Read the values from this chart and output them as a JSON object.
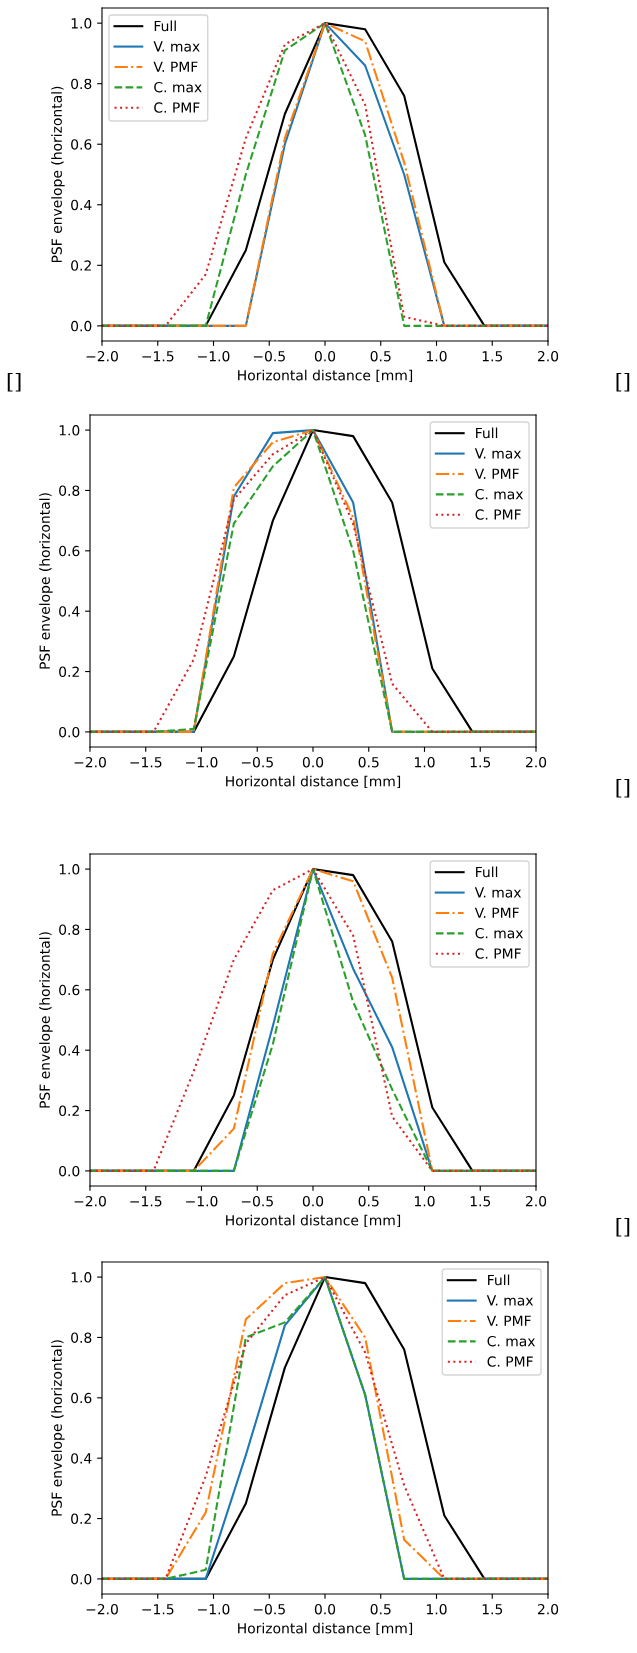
{
  "chart_data": [
    {
      "type": "line",
      "xlabel": "Horizontal distance [mm]",
      "ylabel": "PSF envelope (horizontal)",
      "legend": "top left",
      "annotations": [
        "[]",
        "[]"
      ],
      "x": [
        -2,
        -1.43,
        -1.07,
        -0.71,
        -0.36,
        0,
        0.36,
        0.71,
        1.07,
        1.43,
        2
      ],
      "xlim": [
        -2,
        2
      ],
      "ylim": [
        -0.05,
        1.05
      ],
      "xticks": [
        {
          "value": -2,
          "label": "−2.0"
        },
        {
          "value": -1.5,
          "label": "−1.5"
        },
        {
          "value": -1,
          "label": "−1.0"
        },
        {
          "value": -0.5,
          "label": "−0.5"
        },
        {
          "value": 0,
          "label": "0.0"
        },
        {
          "value": 0.5,
          "label": "0.5"
        },
        {
          "value": 1,
          "label": "1.0"
        },
        {
          "value": 1.5,
          "label": "1.5"
        },
        {
          "value": 2,
          "label": "2.0"
        }
      ],
      "yticks": [
        {
          "value": 0,
          "label": "0.0"
        },
        {
          "value": 0.2,
          "label": "0.2"
        },
        {
          "value": 0.4,
          "label": "0.4"
        },
        {
          "value": 0.6,
          "label": "0.6"
        },
        {
          "value": 0.8,
          "label": "0.8"
        },
        {
          "value": 1,
          "label": "1.0"
        }
      ],
      "series": [
        {
          "name": "Full",
          "color": "#000000",
          "line_style": "solid",
          "values": [
            0,
            0,
            0,
            0.25,
            0.7,
            1.0,
            0.98,
            0.76,
            0.21,
            0,
            0
          ]
        },
        {
          "name": "V. max",
          "color": "#1f77b4",
          "line_style": "solid",
          "values": [
            0,
            0,
            0,
            0,
            0.6,
            1.0,
            0.86,
            0.5,
            0,
            0,
            0
          ]
        },
        {
          "name": "V. PMF",
          "color": "#ff7f0e",
          "line_style": "dashdot",
          "values": [
            0,
            0,
            0,
            0,
            0.62,
            1.0,
            0.94,
            0.54,
            0,
            0,
            0
          ]
        },
        {
          "name": "C. max",
          "color": "#2ca02c",
          "line_style": "dashed",
          "values": [
            0,
            0,
            0,
            0.5,
            0.91,
            1.0,
            0.63,
            0,
            0,
            0,
            0
          ]
        },
        {
          "name": "C. PMF",
          "color": "#d62728",
          "line_style": "dotted",
          "values": [
            0,
            0,
            0.17,
            0.62,
            0.93,
            1.0,
            0.73,
            0.03,
            0,
            0,
            0
          ]
        }
      ]
    },
    {
      "type": "line",
      "xlabel": "Horizontal distance [mm]",
      "ylabel": "PSF envelope (horizontal)",
      "legend": "top right",
      "annotations": [
        "[]"
      ],
      "x": [
        -2,
        -1.43,
        -1.07,
        -0.71,
        -0.36,
        0,
        0.36,
        0.71,
        1.07,
        1.43,
        2
      ],
      "xlim": [
        -2,
        2
      ],
      "ylim": [
        -0.05,
        1.05
      ],
      "xticks": [
        {
          "value": -2,
          "label": "−2.0"
        },
        {
          "value": -1.5,
          "label": "−1.5"
        },
        {
          "value": -1,
          "label": "−1.0"
        },
        {
          "value": -0.5,
          "label": "−0.5"
        },
        {
          "value": 0,
          "label": "0.0"
        },
        {
          "value": 0.5,
          "label": "0.5"
        },
        {
          "value": 1,
          "label": "1.0"
        },
        {
          "value": 1.5,
          "label": "1.5"
        },
        {
          "value": 2,
          "label": "2.0"
        }
      ],
      "yticks": [
        {
          "value": 0,
          "label": "0.0"
        },
        {
          "value": 0.2,
          "label": "0.2"
        },
        {
          "value": 0.4,
          "label": "0.4"
        },
        {
          "value": 0.6,
          "label": "0.6"
        },
        {
          "value": 0.8,
          "label": "0.8"
        },
        {
          "value": 1,
          "label": "1.0"
        }
      ],
      "series": [
        {
          "name": "Full",
          "color": "#000000",
          "line_style": "solid",
          "values": [
            0,
            0,
            0,
            0.25,
            0.7,
            1.0,
            0.98,
            0.76,
            0.21,
            0,
            0
          ]
        },
        {
          "name": "V. max",
          "color": "#1f77b4",
          "line_style": "solid",
          "values": [
            0,
            0,
            0,
            0.78,
            0.99,
            1.0,
            0.76,
            0,
            0,
            0,
            0
          ]
        },
        {
          "name": "V. PMF",
          "color": "#ff7f0e",
          "line_style": "dashdot",
          "values": [
            0,
            0,
            0,
            0.81,
            0.96,
            1.0,
            0.71,
            0,
            0,
            0,
            0
          ]
        },
        {
          "name": "C. max",
          "color": "#2ca02c",
          "line_style": "dashed",
          "values": [
            0,
            0,
            0.01,
            0.69,
            0.88,
            1.0,
            0.6,
            0,
            0,
            0,
            0
          ]
        },
        {
          "name": "C. PMF",
          "color": "#d62728",
          "line_style": "dotted",
          "values": [
            0,
            0,
            0.24,
            0.77,
            0.92,
            1.0,
            0.69,
            0.16,
            0,
            0,
            0
          ]
        }
      ]
    },
    {
      "type": "line",
      "xlabel": "Horizontal distance [mm]",
      "ylabel": "PSF envelope (horizontal)",
      "legend": "top right",
      "annotations": [
        "[]"
      ],
      "x": [
        -2,
        -1.43,
        -1.07,
        -0.71,
        -0.36,
        0,
        0.36,
        0.71,
        1.07,
        1.43,
        2
      ],
      "xlim": [
        -2,
        2
      ],
      "ylim": [
        -0.05,
        1.05
      ],
      "xticks": [
        {
          "value": -2,
          "label": "−2.0"
        },
        {
          "value": -1.5,
          "label": "−1.5"
        },
        {
          "value": -1,
          "label": "−1.0"
        },
        {
          "value": -0.5,
          "label": "−0.5"
        },
        {
          "value": 0,
          "label": "0.0"
        },
        {
          "value": 0.5,
          "label": "0.5"
        },
        {
          "value": 1,
          "label": "1.0"
        },
        {
          "value": 1.5,
          "label": "1.5"
        },
        {
          "value": 2,
          "label": "2.0"
        }
      ],
      "yticks": [
        {
          "value": 0,
          "label": "0.0"
        },
        {
          "value": 0.2,
          "label": "0.2"
        },
        {
          "value": 0.4,
          "label": "0.4"
        },
        {
          "value": 0.6,
          "label": "0.6"
        },
        {
          "value": 0.8,
          "label": "0.8"
        },
        {
          "value": 1,
          "label": "1.0"
        }
      ],
      "series": [
        {
          "name": "Full",
          "color": "#000000",
          "line_style": "solid",
          "values": [
            0,
            0,
            0,
            0.25,
            0.7,
            1.0,
            0.98,
            0.76,
            0.21,
            0,
            0
          ]
        },
        {
          "name": "V. max",
          "color": "#1f77b4",
          "line_style": "solid",
          "values": [
            0,
            0,
            0,
            0,
            0.48,
            1.0,
            0.67,
            0.41,
            0,
            0,
            0
          ]
        },
        {
          "name": "V. PMF",
          "color": "#ff7f0e",
          "line_style": "dashdot",
          "values": [
            0,
            0,
            0,
            0.14,
            0.72,
            1.0,
            0.96,
            0.64,
            0,
            0,
            0
          ]
        },
        {
          "name": "C. max",
          "color": "#2ca02c",
          "line_style": "dashed",
          "values": [
            0,
            0,
            0,
            0,
            0.42,
            1.0,
            0.56,
            0.27,
            0,
            0,
            0
          ]
        },
        {
          "name": "C. PMF",
          "color": "#d62728",
          "line_style": "dotted",
          "values": [
            0,
            0,
            0.33,
            0.7,
            0.93,
            1.0,
            0.78,
            0.18,
            0,
            0,
            0
          ]
        }
      ]
    },
    {
      "type": "line",
      "xlabel": "Horizontal distance [mm]",
      "ylabel": "PSF envelope (horizontal)",
      "legend": "top right",
      "x": [
        -2,
        -1.43,
        -1.07,
        -0.71,
        -0.36,
        0,
        0.36,
        0.71,
        1.07,
        1.43,
        2
      ],
      "xlim": [
        -2,
        2
      ],
      "ylim": [
        -0.05,
        1.05
      ],
      "xticks": [
        {
          "value": -2,
          "label": "−2.0"
        },
        {
          "value": -1.5,
          "label": "−1.5"
        },
        {
          "value": -1,
          "label": "−1.0"
        },
        {
          "value": -0.5,
          "label": "−0.5"
        },
        {
          "value": 0,
          "label": "0.0"
        },
        {
          "value": 0.5,
          "label": "0.5"
        },
        {
          "value": 1,
          "label": "1.0"
        },
        {
          "value": 1.5,
          "label": "1.5"
        },
        {
          "value": 2,
          "label": "2.0"
        }
      ],
      "yticks": [
        {
          "value": 0,
          "label": "0.0"
        },
        {
          "value": 0.2,
          "label": "0.2"
        },
        {
          "value": 0.4,
          "label": "0.4"
        },
        {
          "value": 0.6,
          "label": "0.6"
        },
        {
          "value": 0.8,
          "label": "0.8"
        },
        {
          "value": 1,
          "label": "1.0"
        }
      ],
      "series": [
        {
          "name": "Full",
          "color": "#000000",
          "line_style": "solid",
          "values": [
            0,
            0,
            0,
            0.25,
            0.7,
            1.0,
            0.98,
            0.76,
            0.21,
            0,
            0
          ]
        },
        {
          "name": "V. max",
          "color": "#1f77b4",
          "line_style": "solid",
          "values": [
            0,
            0,
            0,
            0.41,
            0.84,
            1.0,
            0.61,
            0,
            0,
            0,
            0
          ]
        },
        {
          "name": "V. PMF",
          "color": "#ff7f0e",
          "line_style": "dashdot",
          "values": [
            0,
            0,
            0.22,
            0.86,
            0.98,
            1.0,
            0.8,
            0.13,
            0,
            0,
            0
          ]
        },
        {
          "name": "C. max",
          "color": "#2ca02c",
          "line_style": "dashed",
          "values": [
            0,
            0,
            0.03,
            0.8,
            0.85,
            1.0,
            0.61,
            0,
            0,
            0,
            0
          ]
        },
        {
          "name": "C. PMF",
          "color": "#d62728",
          "line_style": "dotted",
          "values": [
            0,
            0,
            0.34,
            0.78,
            0.94,
            1.0,
            0.75,
            0.31,
            0,
            0,
            0
          ]
        }
      ]
    }
  ]
}
